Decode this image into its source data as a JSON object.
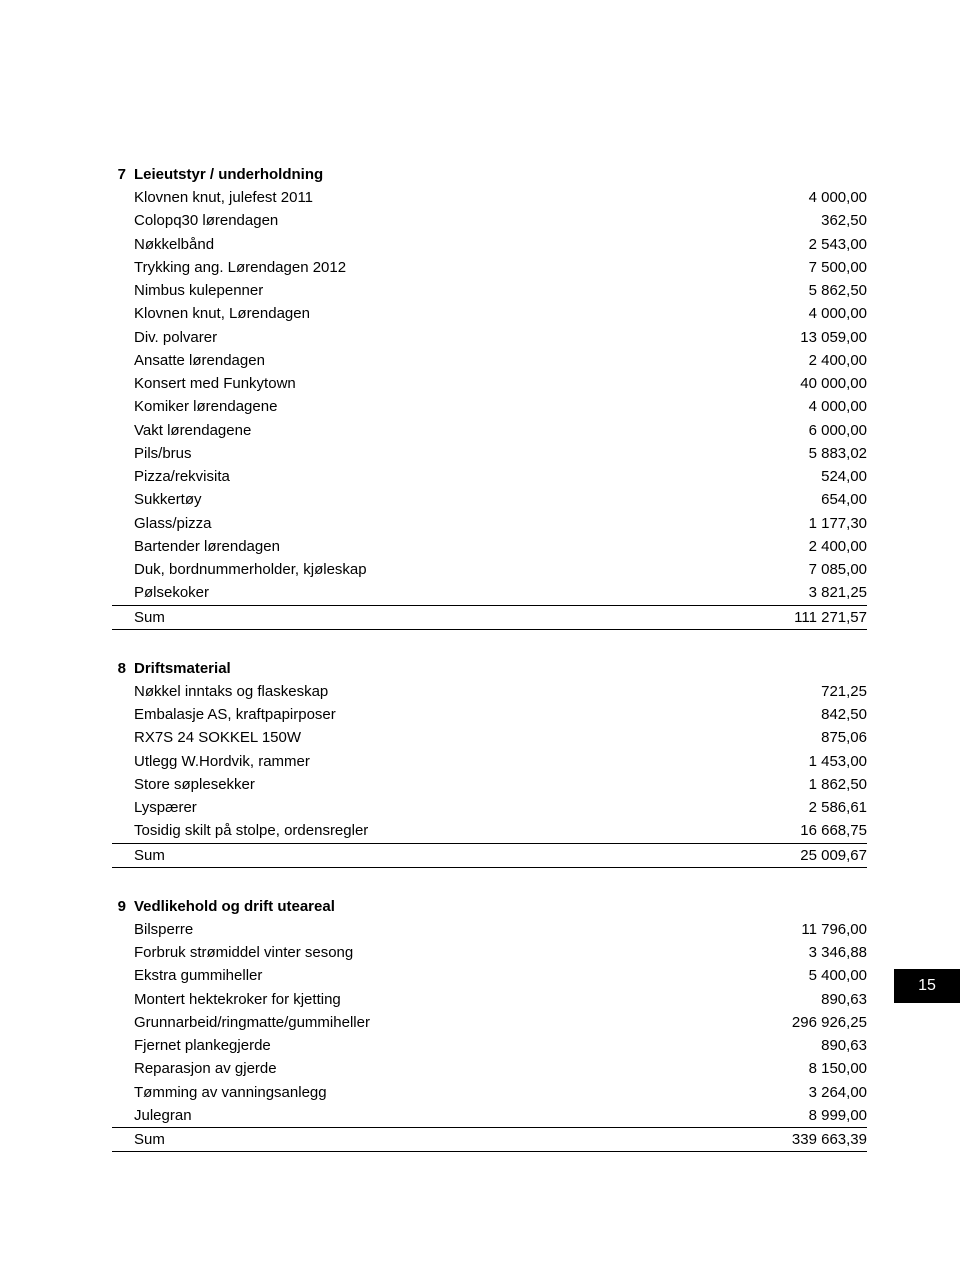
{
  "page_number": "15",
  "sections": [
    {
      "num": "7",
      "title": "Leieutstyr / underholdning",
      "rows": [
        {
          "label": "Klovnen knut, julefest 2011",
          "value": "4 000,00"
        },
        {
          "label": "Colopq30 lørendagen",
          "value": "362,50"
        },
        {
          "label": "Nøkkelbånd",
          "value": "2 543,00"
        },
        {
          "label": "Trykking ang. Lørendagen 2012",
          "value": "7 500,00"
        },
        {
          "label": "Nimbus kulepenner",
          "value": "5 862,50"
        },
        {
          "label": "Klovnen knut, Lørendagen",
          "value": "4 000,00"
        },
        {
          "label": "Div. polvarer",
          "value": "13 059,00"
        },
        {
          "label": "Ansatte lørendagen",
          "value": "2 400,00"
        },
        {
          "label": "Konsert med Funkytown",
          "value": "40 000,00"
        },
        {
          "label": "Komiker lørendagene",
          "value": "4 000,00"
        },
        {
          "label": "Vakt lørendagene",
          "value": "6 000,00"
        },
        {
          "label": "Pils/brus",
          "value": "5 883,02"
        },
        {
          "label": "Pizza/rekvisita",
          "value": "524,00"
        },
        {
          "label": "Sukkertøy",
          "value": "654,00"
        },
        {
          "label": "Glass/pizza",
          "value": "1 177,30"
        },
        {
          "label": "Bartender lørendagen",
          "value": "2 400,00"
        },
        {
          "label": "Duk, bordnummerholder, kjøleskap",
          "value": "7 085,00"
        },
        {
          "label": "Pølsekoker",
          "value": "3 821,25"
        }
      ],
      "sum_label": "Sum",
      "sum_value": "111 271,57"
    },
    {
      "num": "8",
      "title": "Driftsmaterial",
      "rows": [
        {
          "label": "Nøkkel inntaks og flaskeskap",
          "value": "721,25"
        },
        {
          "label": "Embalasje AS, kraftpapirposer",
          "value": "842,50"
        },
        {
          "label": "RX7S 24 SOKKEL 150W",
          "value": "875,06"
        },
        {
          "label": "Utlegg W.Hordvik, rammer",
          "value": "1 453,00"
        },
        {
          "label": "Store søplesekker",
          "value": "1 862,50"
        },
        {
          "label": "Lyspærer",
          "value": "2 586,61"
        },
        {
          "label": "Tosidig skilt på stolpe, ordensregler",
          "value": "16 668,75"
        }
      ],
      "sum_label": "Sum",
      "sum_value": "25 009,67"
    },
    {
      "num": "9",
      "title": "Vedlikehold og drift uteareal",
      "rows": [
        {
          "label": "Bilsperre",
          "value": "11 796,00"
        },
        {
          "label": "Forbruk strømiddel vinter sesong",
          "value": "3 346,88"
        },
        {
          "label": "Ekstra gummiheller",
          "value": "5 400,00"
        },
        {
          "label": "Montert hektekroker for kjetting",
          "value": "890,63"
        },
        {
          "label": "Grunnarbeid/ringmatte/gummiheller",
          "value": "296 926,25"
        },
        {
          "label": "Fjernet plankegjerde",
          "value": "890,63"
        },
        {
          "label": "Reparasjon av gjerde",
          "value": "8 150,00"
        },
        {
          "label": "Tømming av vanningsanlegg",
          "value": "3 264,00"
        },
        {
          "label": "Julegran",
          "value": "8 999,00"
        }
      ],
      "sum_label": "Sum",
      "sum_value": "339 663,39"
    }
  ]
}
